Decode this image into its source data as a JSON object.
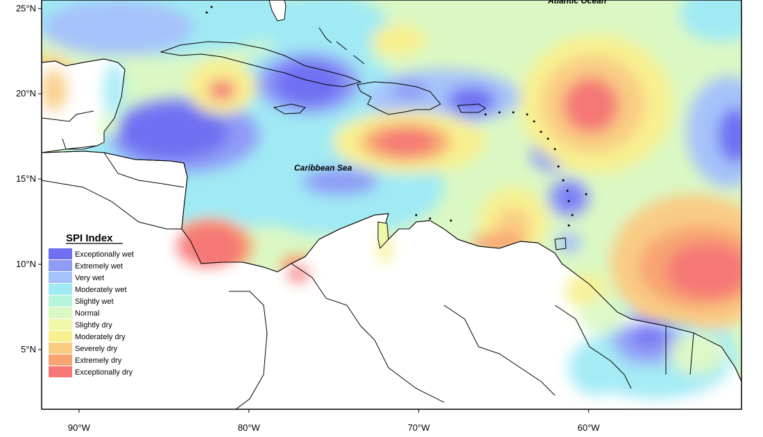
{
  "map": {
    "labels": {
      "atlantic": "Atlantic Ocean",
      "caribbean": "Caribbean Sea"
    },
    "y_ticks": [
      {
        "label": "25°N",
        "lat": 25
      },
      {
        "label": "20°N",
        "lat": 20
      },
      {
        "label": "15°N",
        "lat": 15
      },
      {
        "label": "10°N",
        "lat": 10
      },
      {
        "label": "5°N",
        "lat": 5
      }
    ],
    "x_ticks": [
      {
        "label": "90°W",
        "lon": -90
      },
      {
        "label": "80°W",
        "lon": -80
      },
      {
        "label": "70°W",
        "lon": -70
      },
      {
        "label": "60°W",
        "lon": -60
      }
    ],
    "lon_range": [
      -92.2,
      -51
    ],
    "lat_range": [
      1.5,
      25.5
    ]
  },
  "legend": {
    "title": "SPI Index",
    "items": [
      {
        "label": "Exceptionally wet",
        "color": "#6f6ff2"
      },
      {
        "label": "Extremely wet",
        "color": "#8f9cf6"
      },
      {
        "label": "Very wet",
        "color": "#a6c2fa"
      },
      {
        "label": "Moderately wet",
        "color": "#a0eaf4"
      },
      {
        "label": "Slightly wet",
        "color": "#b6f4dc"
      },
      {
        "label": "Normal",
        "color": "#dbf8c4"
      },
      {
        "label": "Slightly dry",
        "color": "#eef8a8"
      },
      {
        "label": "Moderately dry",
        "color": "#f8f090"
      },
      {
        "label": "Severely dry",
        "color": "#f9cc84"
      },
      {
        "label": "Extremely dry",
        "color": "#f8a472"
      },
      {
        "label": "Exceptionally dry",
        "color": "#f57876"
      }
    ]
  }
}
